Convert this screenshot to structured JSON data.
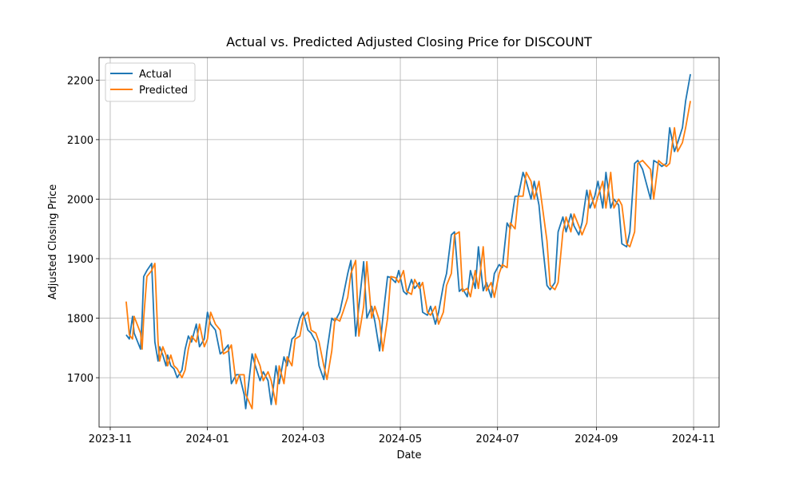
{
  "chart_data": {
    "type": "line",
    "title": "Actual vs. Predicted Adjusted Closing Price for DISCOUNT",
    "x_label": "Date",
    "y_label": "Adjusted Closing Price",
    "x": [
      "2023-11-11",
      "2023-11-13",
      "2023-11-15",
      "2023-11-16",
      "2023-11-20",
      "2023-11-21",
      "2023-11-22",
      "2023-11-24",
      "2023-11-27",
      "2023-11-29",
      "2023-12-01",
      "2023-12-02",
      "2023-12-04",
      "2023-12-06",
      "2023-12-07",
      "2023-12-09",
      "2023-12-11",
      "2023-12-13",
      "2023-12-16",
      "2023-12-18",
      "2023-12-20",
      "2023-12-22",
      "2023-12-25",
      "2023-12-27",
      "2023-12-30",
      "2024-01-01",
      "2024-01-03",
      "2024-01-06",
      "2024-01-09",
      "2024-01-11",
      "2024-01-14",
      "2024-01-16",
      "2024-01-19",
      "2024-01-21",
      "2024-01-24",
      "2024-01-25",
      "2024-01-29",
      "2024-01-31",
      "2024-02-03",
      "2024-02-05",
      "2024-02-08",
      "2024-02-10",
      "2024-02-13",
      "2024-02-15",
      "2024-02-18",
      "2024-02-20",
      "2024-02-23",
      "2024-02-25",
      "2024-02-28",
      "2024-03-01",
      "2024-03-04",
      "2024-03-06",
      "2024-03-09",
      "2024-03-11",
      "2024-03-14",
      "2024-03-16",
      "2024-03-19",
      "2024-03-21",
      "2024-03-24",
      "2024-03-26",
      "2024-03-29",
      "2024-03-31",
      "2024-04-03",
      "2024-04-05",
      "2024-04-08",
      "2024-04-10",
      "2024-04-13",
      "2024-04-15",
      "2024-04-18",
      "2024-04-20",
      "2024-04-23",
      "2024-04-25",
      "2024-04-28",
      "2024-04-30",
      "2024-05-03",
      "2024-05-05",
      "2024-05-08",
      "2024-05-10",
      "2024-05-13",
      "2024-05-15",
      "2024-05-18",
      "2024-05-20",
      "2024-05-23",
      "2024-05-25",
      "2024-05-28",
      "2024-05-30",
      "2024-06-02",
      "2024-06-04",
      "2024-06-07",
      "2024-06-09",
      "2024-06-12",
      "2024-06-14",
      "2024-06-17",
      "2024-06-19",
      "2024-06-22",
      "2024-06-24",
      "2024-06-27",
      "2024-06-29",
      "2024-07-02",
      "2024-07-04",
      "2024-07-07",
      "2024-07-09",
      "2024-07-12",
      "2024-07-14",
      "2024-07-17",
      "2024-07-19",
      "2024-07-22",
      "2024-07-24",
      "2024-07-27",
      "2024-07-29",
      "2024-08-01",
      "2024-08-03",
      "2024-08-06",
      "2024-08-08",
      "2024-08-11",
      "2024-08-13",
      "2024-08-16",
      "2024-08-18",
      "2024-08-21",
      "2024-08-23",
      "2024-08-26",
      "2024-08-28",
      "2024-08-31",
      "2024-09-02",
      "2024-09-05",
      "2024-09-07",
      "2024-09-10",
      "2024-09-12",
      "2024-09-15",
      "2024-09-17",
      "2024-09-20",
      "2024-09-22",
      "2024-09-25",
      "2024-09-27",
      "2024-09-30",
      "2024-10-05",
      "2024-10-07",
      "2024-10-10",
      "2024-10-12",
      "2024-10-15",
      "2024-10-17",
      "2024-10-20",
      "2024-10-22",
      "2024-10-25",
      "2024-10-27",
      "2024-10-30"
    ],
    "series": [
      {
        "name": "Actual",
        "color": "#1f77b4",
        "values": [
          1772,
          1765,
          1803,
          1775,
          1748,
          1800,
          1870,
          1880,
          1892,
          1760,
          1728,
          1752,
          1738,
          1720,
          1738,
          1720,
          1715,
          1700,
          1713,
          1748,
          1770,
          1760,
          1790,
          1752,
          1765,
          1810,
          1790,
          1780,
          1740,
          1745,
          1755,
          1690,
          1705,
          1705,
          1672,
          1648,
          1740,
          1720,
          1695,
          1710,
          1695,
          1655,
          1720,
          1690,
          1735,
          1720,
          1765,
          1770,
          1800,
          1810,
          1780,
          1775,
          1760,
          1720,
          1697,
          1745,
          1800,
          1795,
          1810,
          1835,
          1875,
          1897,
          1770,
          1820,
          1895,
          1800,
          1820,
          1795,
          1745,
          1800,
          1870,
          1868,
          1860,
          1880,
          1845,
          1840,
          1865,
          1850,
          1860,
          1810,
          1805,
          1820,
          1790,
          1810,
          1855,
          1875,
          1940,
          1945,
          1845,
          1850,
          1836,
          1880,
          1850,
          1920,
          1846,
          1860,
          1835,
          1875,
          1890,
          1885,
          1960,
          1950,
          2005,
          2005,
          2045,
          2030,
          2000,
          2030,
          1990,
          1930,
          1855,
          1848,
          1860,
          1945,
          1970,
          1945,
          1975,
          1955,
          1940,
          1960,
          2015,
          1985,
          2005,
          2030,
          1985,
          2045,
          1985,
          2000,
          1990,
          1925,
          1920,
          1945,
          2060,
          2065,
          2050,
          2000,
          2065,
          2060,
          2055,
          2060,
          2120,
          2080,
          2095,
          2120,
          2165,
          2210
        ]
      },
      {
        "name": "Predicted",
        "color": "#ff7f0e",
        "values": [
          1828,
          1772,
          1765,
          1803,
          1775,
          1748,
          1800,
          1870,
          1880,
          1892,
          1760,
          1728,
          1752,
          1738,
          1720,
          1738,
          1720,
          1715,
          1700,
          1713,
          1748,
          1770,
          1760,
          1790,
          1752,
          1765,
          1810,
          1790,
          1780,
          1740,
          1745,
          1755,
          1690,
          1705,
          1705,
          1672,
          1648,
          1740,
          1720,
          1695,
          1710,
          1695,
          1655,
          1720,
          1690,
          1735,
          1720,
          1765,
          1770,
          1800,
          1810,
          1780,
          1775,
          1760,
          1720,
          1697,
          1745,
          1800,
          1795,
          1810,
          1835,
          1875,
          1897,
          1770,
          1820,
          1895,
          1800,
          1820,
          1795,
          1745,
          1800,
          1870,
          1868,
          1860,
          1880,
          1845,
          1840,
          1865,
          1850,
          1860,
          1810,
          1805,
          1820,
          1790,
          1810,
          1855,
          1875,
          1940,
          1945,
          1845,
          1850,
          1836,
          1880,
          1850,
          1920,
          1846,
          1860,
          1835,
          1875,
          1890,
          1885,
          1960,
          1950,
          2005,
          2005,
          2045,
          2030,
          2000,
          2030,
          1990,
          1930,
          1855,
          1848,
          1860,
          1945,
          1970,
          1945,
          1975,
          1955,
          1940,
          1960,
          2015,
          1985,
          2005,
          2030,
          1985,
          2045,
          1985,
          2000,
          1990,
          1925,
          1920,
          1945,
          2060,
          2065,
          2050,
          2000,
          2065,
          2060,
          2055,
          2060,
          2120,
          2080,
          2095,
          2120,
          2165
        ]
      }
    ],
    "xlim": [
      "2023-10-25",
      "2024-11-17"
    ],
    "xticks": [
      {
        "value": "2023-11-01",
        "label": "2023-11"
      },
      {
        "value": "2024-01-01",
        "label": "2024-01"
      },
      {
        "value": "2024-03-01",
        "label": "2024-03"
      },
      {
        "value": "2024-05-01",
        "label": "2024-05"
      },
      {
        "value": "2024-07-01",
        "label": "2024-07"
      },
      {
        "value": "2024-09-01",
        "label": "2024-09"
      },
      {
        "value": "2024-11-01",
        "label": "2024-11"
      }
    ],
    "ylim": [
      1617,
      2238
    ],
    "yticks": [
      1700,
      1800,
      1900,
      2000,
      2100,
      2200
    ],
    "grid": true,
    "legend": "upper-left"
  }
}
